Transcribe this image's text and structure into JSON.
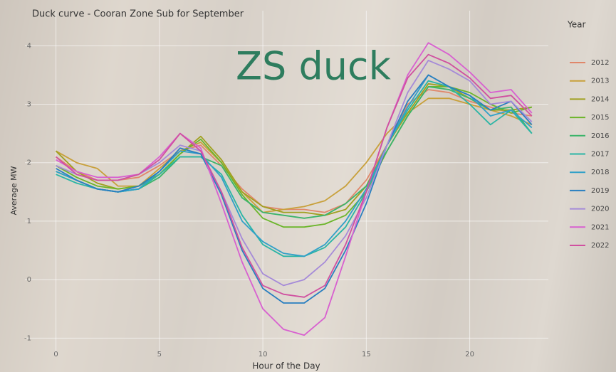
{
  "chart_data": {
    "type": "line",
    "title": "Duck curve - Cooran Zone Sub for September",
    "annotation": "ZS duck",
    "xlabel": "Hour of the Day",
    "ylabel": "Average MW",
    "legend_title": "Year",
    "legend": "right",
    "grid": true,
    "x": [
      0,
      1,
      2,
      3,
      4,
      5,
      6,
      7,
      8,
      9,
      10,
      11,
      12,
      13,
      14,
      15,
      16,
      17,
      18,
      19,
      20,
      21,
      22,
      23
    ],
    "xlim": [
      -1.5,
      23.8
    ],
    "ylim": [
      -1.3,
      4.6
    ],
    "xticks": [
      0,
      5,
      10,
      15,
      20
    ],
    "yticks": [
      -1,
      0,
      1,
      2,
      3,
      4
    ],
    "series": [
      {
        "name": "2012",
        "color": "#e0876a",
        "values": [
          2.1,
          1.85,
          1.7,
          1.7,
          1.75,
          1.95,
          2.2,
          2.3,
          1.95,
          1.55,
          1.25,
          1.2,
          1.2,
          1.15,
          1.3,
          1.7,
          2.3,
          3.0,
          3.25,
          3.2,
          3.05,
          2.95,
          2.85,
          2.8
        ]
      },
      {
        "name": "2013",
        "color": "#c8a03a",
        "values": [
          2.2,
          2.0,
          1.9,
          1.6,
          1.6,
          1.9,
          2.2,
          2.35,
          2.0,
          1.5,
          1.15,
          1.2,
          1.25,
          1.35,
          1.6,
          2.0,
          2.5,
          2.85,
          3.1,
          3.1,
          3.0,
          2.9,
          2.8,
          2.65
        ]
      },
      {
        "name": "2014",
        "color": "#a0a020",
        "values": [
          2.2,
          1.85,
          1.65,
          1.55,
          1.6,
          1.8,
          2.15,
          2.45,
          2.05,
          1.5,
          1.25,
          1.15,
          1.15,
          1.1,
          1.2,
          1.6,
          2.3,
          2.85,
          3.35,
          3.3,
          3.1,
          2.9,
          2.9,
          2.95
        ]
      },
      {
        "name": "2015",
        "color": "#6bb52a",
        "values": [
          1.95,
          1.75,
          1.6,
          1.55,
          1.6,
          1.8,
          2.15,
          2.4,
          2.0,
          1.45,
          1.05,
          0.9,
          0.9,
          0.95,
          1.1,
          1.5,
          2.2,
          2.8,
          3.3,
          3.3,
          3.2,
          3.0,
          2.85,
          2.95
        ]
      },
      {
        "name": "2016",
        "color": "#3cb46a",
        "values": [
          1.85,
          1.7,
          1.55,
          1.5,
          1.55,
          1.75,
          2.1,
          2.1,
          1.95,
          1.4,
          1.15,
          1.1,
          1.05,
          1.1,
          1.3,
          1.6,
          2.2,
          2.8,
          3.3,
          3.25,
          3.1,
          2.9,
          2.95,
          2.5
        ]
      },
      {
        "name": "2017",
        "color": "#2ab5a5",
        "values": [
          1.8,
          1.65,
          1.55,
          1.5,
          1.55,
          1.8,
          2.1,
          2.1,
          1.8,
          1.1,
          0.6,
          0.4,
          0.4,
          0.55,
          0.9,
          1.5,
          2.3,
          2.9,
          3.4,
          3.3,
          3.0,
          2.65,
          2.9,
          2.5
        ]
      },
      {
        "name": "2018",
        "color": "#30a0c8",
        "values": [
          1.85,
          1.7,
          1.55,
          1.5,
          1.55,
          1.85,
          2.2,
          2.15,
          1.75,
          1.0,
          0.65,
          0.45,
          0.4,
          0.6,
          1.0,
          1.55,
          2.3,
          2.95,
          3.5,
          3.3,
          3.15,
          2.8,
          2.9,
          2.6
        ]
      },
      {
        "name": "2019",
        "color": "#2a7fc0",
        "values": [
          1.9,
          1.7,
          1.55,
          1.5,
          1.6,
          1.85,
          2.25,
          2.15,
          1.45,
          0.5,
          -0.15,
          -0.4,
          -0.4,
          -0.15,
          0.5,
          1.3,
          2.3,
          3.05,
          3.5,
          3.3,
          3.15,
          2.9,
          3.05,
          2.65
        ]
      },
      {
        "name": "2020",
        "color": "#a58ad8",
        "values": [
          1.95,
          1.8,
          1.7,
          1.7,
          1.8,
          2.0,
          2.3,
          2.2,
          1.5,
          0.7,
          0.1,
          -0.1,
          0.0,
          0.3,
          0.75,
          1.4,
          2.3,
          3.2,
          3.75,
          3.6,
          3.4,
          3.0,
          3.05,
          2.7
        ]
      },
      {
        "name": "2021",
        "color": "#d860d0",
        "values": [
          2.05,
          1.85,
          1.75,
          1.75,
          1.8,
          2.1,
          2.5,
          2.25,
          1.3,
          0.3,
          -0.5,
          -0.85,
          -0.95,
          -0.65,
          0.4,
          1.5,
          2.6,
          3.5,
          4.05,
          3.85,
          3.55,
          3.2,
          3.25,
          2.85
        ]
      },
      {
        "name": "2022",
        "color": "#d050a0",
        "values": [
          2.1,
          1.8,
          1.7,
          1.7,
          1.8,
          2.05,
          2.5,
          2.2,
          1.5,
          0.55,
          -0.1,
          -0.25,
          -0.3,
          -0.1,
          0.6,
          1.5,
          2.6,
          3.45,
          3.85,
          3.7,
          3.45,
          3.1,
          3.15,
          2.8
        ]
      }
    ]
  }
}
